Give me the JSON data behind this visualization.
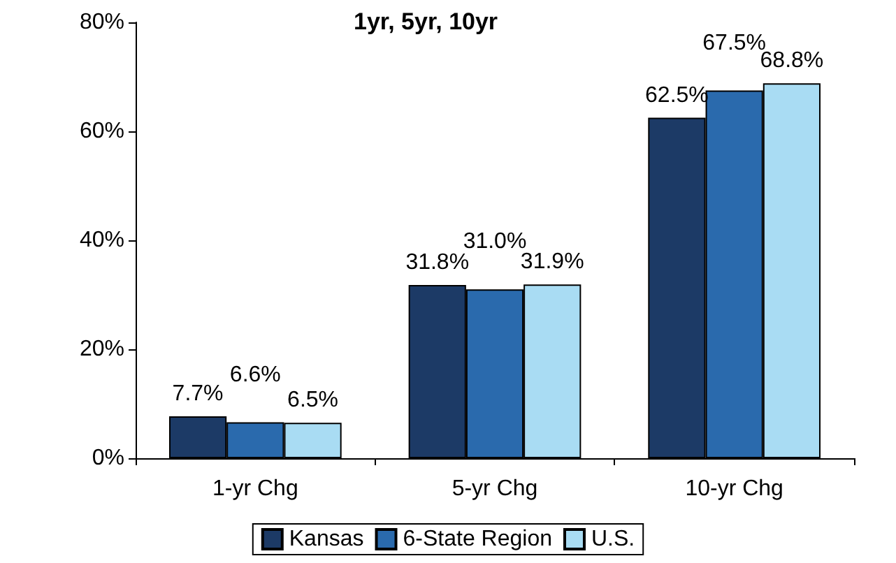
{
  "chart_data": {
    "type": "bar",
    "title": "1yr, 5yr, 10yr",
    "categories": [
      "1-yr Chg",
      "5-yr Chg",
      "10-yr Chg"
    ],
    "series": [
      {
        "name": "Kansas",
        "color": "#1c3a66",
        "values": [
          7.7,
          31.8,
          62.5
        ],
        "value_labels": [
          "7.7%",
          "31.8%",
          "62.5%"
        ]
      },
      {
        "name": "6-State Region",
        "color": "#2a6aad",
        "values": [
          6.6,
          31.0,
          67.5
        ],
        "value_labels": [
          "6.6%",
          "31.0%",
          "67.5%"
        ]
      },
      {
        "name": "U.S.",
        "color": "#a9dcf3",
        "values": [
          6.5,
          31.9,
          68.8
        ],
        "value_labels": [
          "6.5%",
          "31.9%",
          "68.8%"
        ]
      }
    ],
    "ylim": [
      0,
      80
    ],
    "yticks": [
      {
        "value": 0,
        "label": "0%"
      },
      {
        "value": 20,
        "label": "20%"
      },
      {
        "value": 40,
        "label": "40%"
      },
      {
        "value": 60,
        "label": "60%"
      },
      {
        "value": 80,
        "label": "80%"
      }
    ],
    "grid": false,
    "legend": "bottom"
  }
}
